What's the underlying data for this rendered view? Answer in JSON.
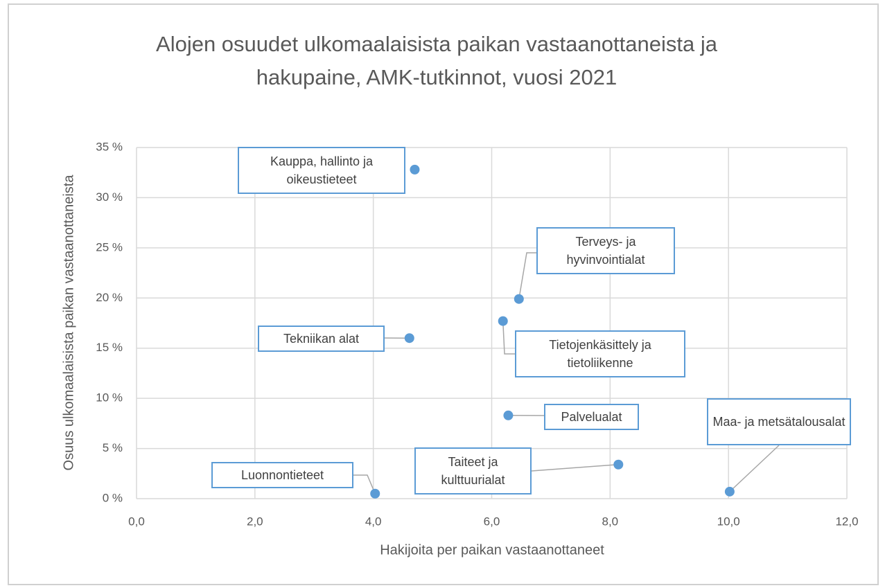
{
  "chart_data": {
    "type": "scatter",
    "title": "Alojen osuudet ulkomaalaisista paikan vastaanottaneista ja hakupaine, AMK-tutkinnot, vuosi 2021",
    "xlabel": "Hakijoita per paikan vastaanottaneet",
    "ylabel": "Osuus ulkomaalaisista paikan vastaanottaneista",
    "names": [
      "Kauppa, hallinto ja oikeustieteet",
      "Terveys- ja hyvinvointialat",
      "Tietojenkäsittely ja tietoliikenne",
      "Tekniikan alat",
      "Palvelualat",
      "Taiteet ja kulttuurialat",
      "Luonnontieteet",
      "Maa- ja metsätalousalat"
    ],
    "x": [
      4.7,
      6.46,
      6.19,
      4.61,
      6.28,
      8.14,
      4.03,
      10.02
    ],
    "y": [
      32.8,
      19.9,
      17.7,
      16.0,
      8.3,
      3.4,
      0.5,
      0.7
    ],
    "color": "#5b9bd5",
    "xlim": [
      0,
      12
    ],
    "xticks": [
      {
        "value": 0,
        "label": "0,0"
      },
      {
        "value": 2,
        "label": "2,0"
      },
      {
        "value": 4,
        "label": "4,0"
      },
      {
        "value": 6,
        "label": "6,0"
      },
      {
        "value": 8,
        "label": "8,0"
      },
      {
        "value": 10,
        "label": "10,0"
      },
      {
        "value": 12,
        "label": "12,0"
      }
    ],
    "ylim": [
      0,
      35
    ],
    "yticks": [
      {
        "value": 0,
        "label": "0 %"
      },
      {
        "value": 5,
        "label": "5 %"
      },
      {
        "value": 10,
        "label": "10 %"
      },
      {
        "value": 15,
        "label": "15 %"
      },
      {
        "value": 20,
        "label": "20 %"
      },
      {
        "value": 25,
        "label": "25 %"
      },
      {
        "value": 30,
        "label": "30 %"
      },
      {
        "value": 35,
        "label": "35 %"
      }
    ],
    "grid": true
  }
}
